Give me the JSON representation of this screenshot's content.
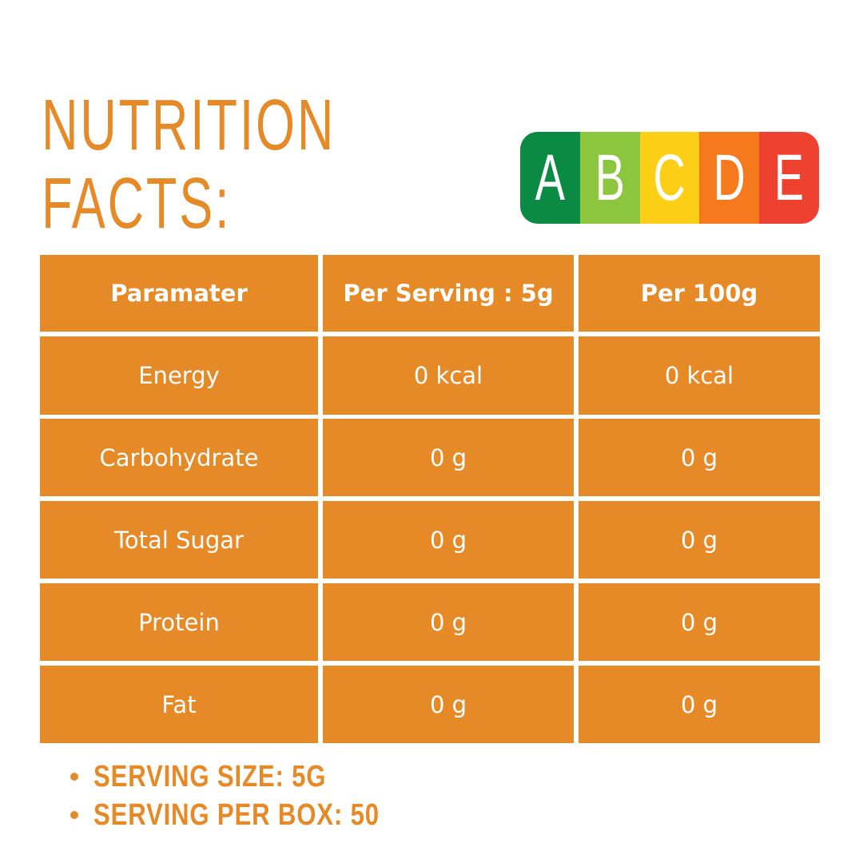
{
  "header": {
    "title_lines": [
      "NUTRITION",
      "FACTS:"
    ]
  },
  "grade_scale": {
    "letters": [
      "A",
      "B",
      "C",
      "D",
      "E"
    ]
  },
  "table": {
    "columns": [
      "Paramater",
      "Per Serving : 5g",
      "Per 100g"
    ],
    "rows": [
      [
        "Energy",
        "0 kcal",
        "0 kcal"
      ],
      [
        "Carbohydrate",
        "0 g",
        "0 g"
      ],
      [
        "Total Sugar",
        "0 g",
        "0 g"
      ],
      [
        "Protein",
        "0 g",
        "0 g"
      ],
      [
        "Fat",
        "0 g",
        "0 g"
      ]
    ]
  },
  "notes": [
    "SERVING SIZE: 5G",
    "SERVING PER BOX: 50"
  ]
}
